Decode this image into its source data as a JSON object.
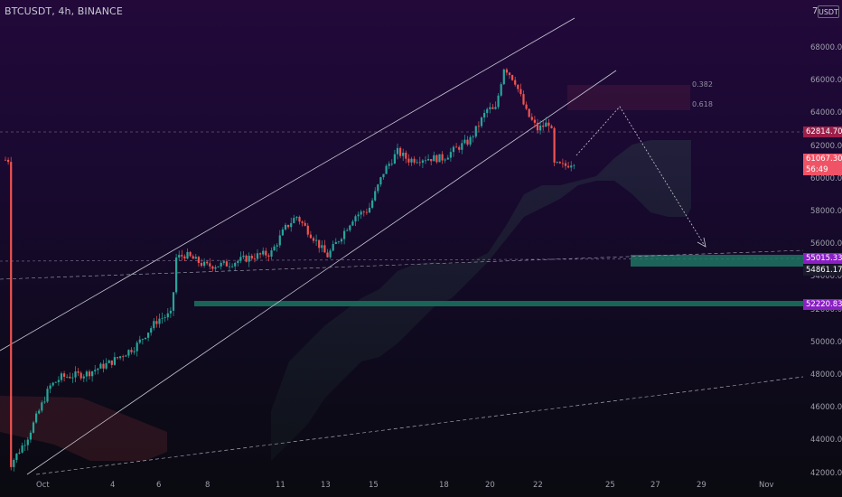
{
  "header": {
    "symbol": "BTCUSDT, 4h, BINANCE"
  },
  "scale": {
    "log_label": "7",
    "currency_label": "USDT"
  },
  "y_axis": {
    "ticks": [
      "68000.00",
      "66000.00",
      "64000.00",
      "62000.00",
      "60000.00",
      "58000.00",
      "56000.00",
      "54000.00",
      "52000.00",
      "50000.00",
      "48000.00",
      "46000.00",
      "44000.00",
      "42000.00"
    ]
  },
  "x_axis": {
    "ticks": [
      "Oct",
      "4",
      "6",
      "8",
      "11",
      "13",
      "15",
      "18",
      "20",
      "22",
      "25",
      "27",
      "29",
      "Nov"
    ]
  },
  "price_labels": [
    {
      "value": "62814.70",
      "color": "#9c1f4a"
    },
    {
      "value": "61067.30",
      "sub": "56:49",
      "color": "#f05366"
    },
    {
      "value": "55015.33",
      "color": "#8a20c4"
    },
    {
      "value": "54861.17",
      "color": "#1a1a2a"
    },
    {
      "value": "52220.83",
      "color": "#8a20c4"
    }
  ],
  "fib_labels": [
    "0.382",
    "0.618"
  ],
  "colors": {
    "up": "#26a69a",
    "down": "#ef5350",
    "channel": "#bcbcc8"
  },
  "chart_data": {
    "type": "candlestick",
    "symbol": "BTCUSDT",
    "interval": "4h",
    "exchange": "BINANCE",
    "ylim": [
      41800,
      70500
    ],
    "current_price": 61067.3,
    "countdown": "56:49",
    "levels": [
      62814.7,
      55015.33,
      54861.17,
      52220.83
    ],
    "close_path_approx": [
      [
        "Sep 30",
        42200
      ],
      [
        "Oct 1",
        43800
      ],
      [
        "Oct 2",
        47600
      ],
      [
        "Oct 3",
        47800
      ],
      [
        "Oct 4",
        49000
      ],
      [
        "Oct 5",
        49500
      ],
      [
        "Oct 6",
        51500
      ],
      [
        "Oct 6 late",
        55000
      ],
      [
        "Oct 7",
        54600
      ],
      [
        "Oct 8",
        54900
      ],
      [
        "Oct 9",
        55000
      ],
      [
        "Oct 10",
        56200
      ],
      [
        "Oct 11",
        57300
      ],
      [
        "Oct 12",
        56500
      ],
      [
        "Oct 13",
        55200
      ],
      [
        "Oct 14",
        57400
      ],
      [
        "Oct 15",
        60800
      ],
      [
        "Oct 16",
        61400
      ],
      [
        "Oct 17",
        61300
      ],
      [
        "Oct 18",
        62100
      ],
      [
        "Oct 19",
        62500
      ],
      [
        "Oct 20",
        64300
      ],
      [
        "Oct 20 late",
        66900
      ],
      [
        "Oct 21",
        65000
      ],
      [
        "Oct 21 late",
        62800
      ],
      [
        "Oct 22",
        63200
      ],
      [
        "Oct 22 late",
        60800
      ],
      [
        "Oct 23",
        61067
      ]
    ],
    "forecast_path": [
      [
        "Oct 23",
        61067
      ],
      [
        "Oct 25",
        64500
      ],
      [
        "Oct 28",
        56000
      ]
    ]
  }
}
